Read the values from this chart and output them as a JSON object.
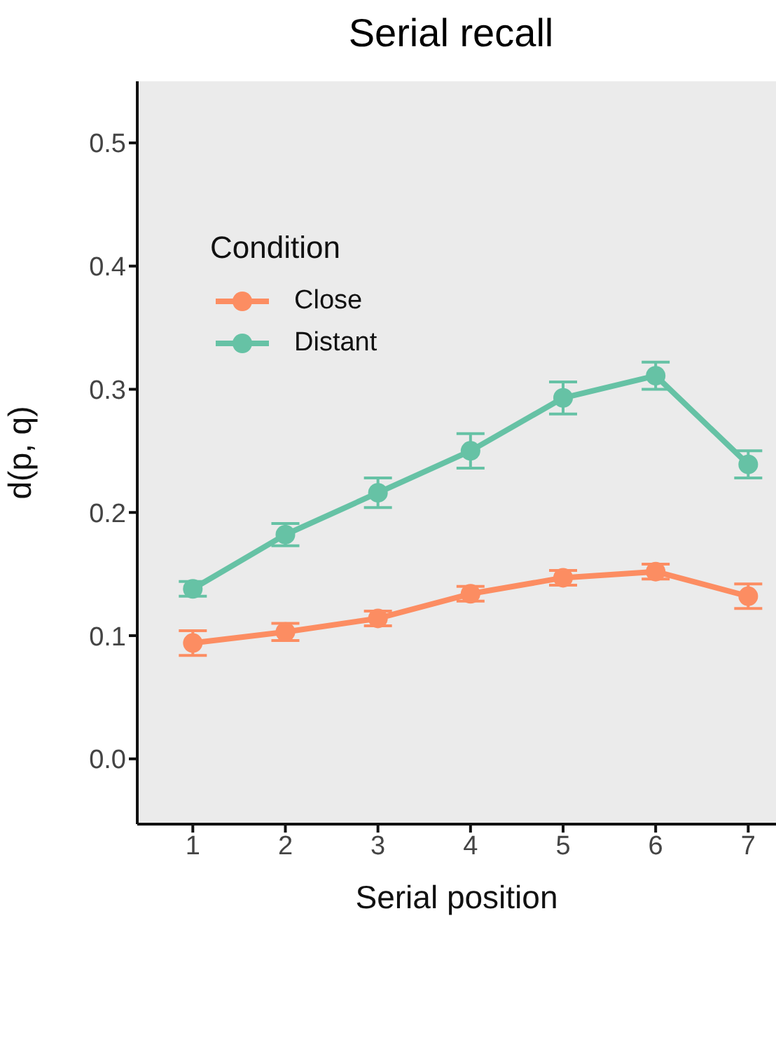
{
  "chart_data": {
    "type": "line",
    "title": "Serial recall",
    "xlabel": "Serial position",
    "ylabel": "d(p, q)",
    "legend_title": "Condition",
    "x": [
      1,
      2,
      3,
      4,
      5,
      6,
      7
    ],
    "series": [
      {
        "name": "Close",
        "color": "#fc8d62",
        "values": [
          0.094,
          0.103,
          0.114,
          0.134,
          0.147,
          0.152,
          0.132
        ],
        "errors": [
          0.01,
          0.007,
          0.006,
          0.006,
          0.006,
          0.006,
          0.01
        ]
      },
      {
        "name": "Distant",
        "color": "#66c2a5",
        "values": [
          0.138,
          0.182,
          0.216,
          0.25,
          0.293,
          0.311,
          0.239
        ],
        "errors": [
          0.006,
          0.009,
          0.012,
          0.014,
          0.013,
          0.011,
          0.011
        ]
      }
    ],
    "xlim": [
      0.4,
      7.3
    ],
    "xticks": [
      1,
      2,
      3,
      4,
      5,
      6,
      7
    ],
    "ylim": [
      -0.053,
      0.55
    ],
    "yticks": [
      {
        "value": 0,
        "label": "0.0"
      },
      0.1,
      0.2,
      0.3,
      0.4,
      0.5
    ],
    "grid": false,
    "legend": "top left",
    "marker": "circle",
    "line_style": "solid"
  }
}
